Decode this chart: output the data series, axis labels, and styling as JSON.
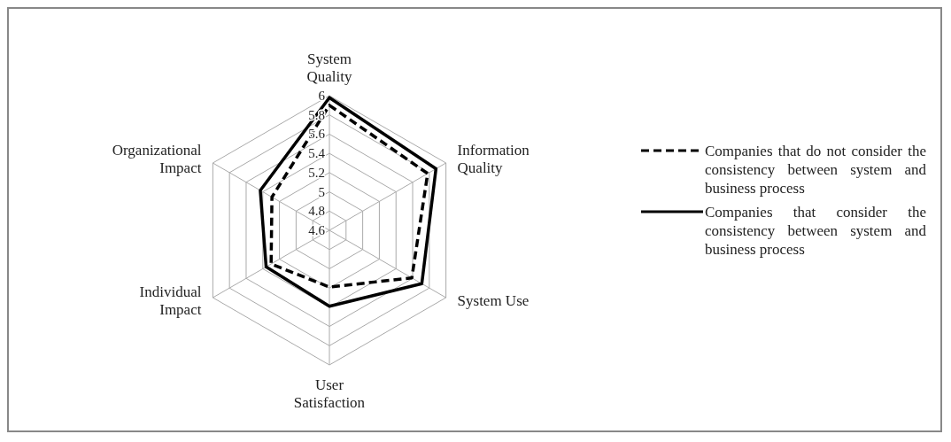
{
  "chart_data": {
    "type": "radar",
    "categories": [
      "System Quality",
      "Information Quality",
      "System Use",
      "User Satisfaction",
      "Individual Impact",
      "Organizational Impact"
    ],
    "ylim": [
      4.6,
      6
    ],
    "yticks": [
      4.6,
      4.8,
      5,
      5.2,
      5.4,
      5.6,
      5.8,
      6
    ],
    "grid": true,
    "legend": "right",
    "marker": "none",
    "series": [
      {
        "name": "Companies that do not consider the consistency between system and business process",
        "color": "#000000",
        "line_style": "dashed",
        "values": [
          5.9,
          5.78,
          5.59,
          5.19,
          5.3,
          5.29
        ]
      },
      {
        "name": "Companies that consider the consistency between system and business process",
        "color": "#000000",
        "line_style": "solid",
        "values": [
          5.98,
          5.88,
          5.71,
          5.39,
          5.36,
          5.43
        ]
      }
    ]
  }
}
